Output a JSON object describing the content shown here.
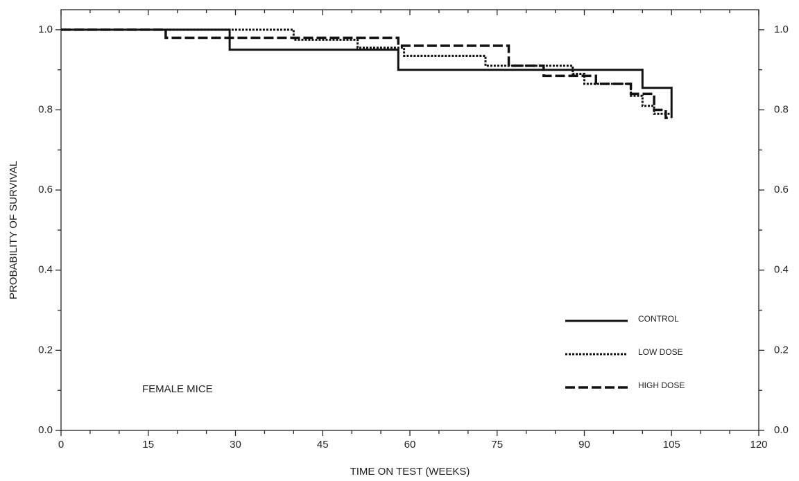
{
  "chart_data": {
    "type": "step",
    "xlabel": "TIME ON TEST (WEEKS)",
    "ylabel": "PROBABILITY OF SURVIVAL",
    "annotation": "FEMALE MICE",
    "xlim": [
      0,
      120
    ],
    "ylim": [
      0,
      1.05
    ],
    "xticks": [
      0,
      15,
      30,
      45,
      60,
      75,
      90,
      105,
      120
    ],
    "xminorticks": [
      5,
      10,
      20,
      25,
      35,
      40,
      50,
      55,
      65,
      70,
      80,
      85,
      95,
      100,
      110,
      115
    ],
    "yticks": [
      {
        "value": 0,
        "label": "0.0"
      },
      0.2,
      0.4,
      0.6,
      0.8,
      {
        "value": 1,
        "label": "1.0"
      }
    ],
    "yminorticks": [
      0.1,
      0.3,
      0.5,
      0.7,
      0.9
    ],
    "right_axis": true,
    "legend": "lower right",
    "series": [
      {
        "name": "CONTROL",
        "color": "#111111",
        "dash": "solid",
        "x": [
          0,
          29,
          58,
          100,
          105
        ],
        "values": [
          1.0,
          0.95,
          0.9,
          0.855,
          0.78
        ]
      },
      {
        "name": "LOW DOSE",
        "color": "#111111",
        "dash": "dotted",
        "x": [
          18,
          40,
          51,
          59,
          73,
          88,
          90,
          98,
          100,
          102,
          105
        ],
        "values": [
          1.0,
          0.975,
          0.955,
          0.935,
          0.91,
          0.89,
          0.865,
          0.835,
          0.81,
          0.79,
          0.79
        ]
      },
      {
        "name": "HIGH DOSE",
        "color": "#111111",
        "dash": "dashed",
        "x": [
          0,
          18,
          58,
          77,
          83,
          92,
          98,
          102,
          104,
          105
        ],
        "values": [
          1.0,
          0.98,
          0.96,
          0.91,
          0.885,
          0.865,
          0.84,
          0.8,
          0.78,
          0.78
        ]
      }
    ]
  }
}
